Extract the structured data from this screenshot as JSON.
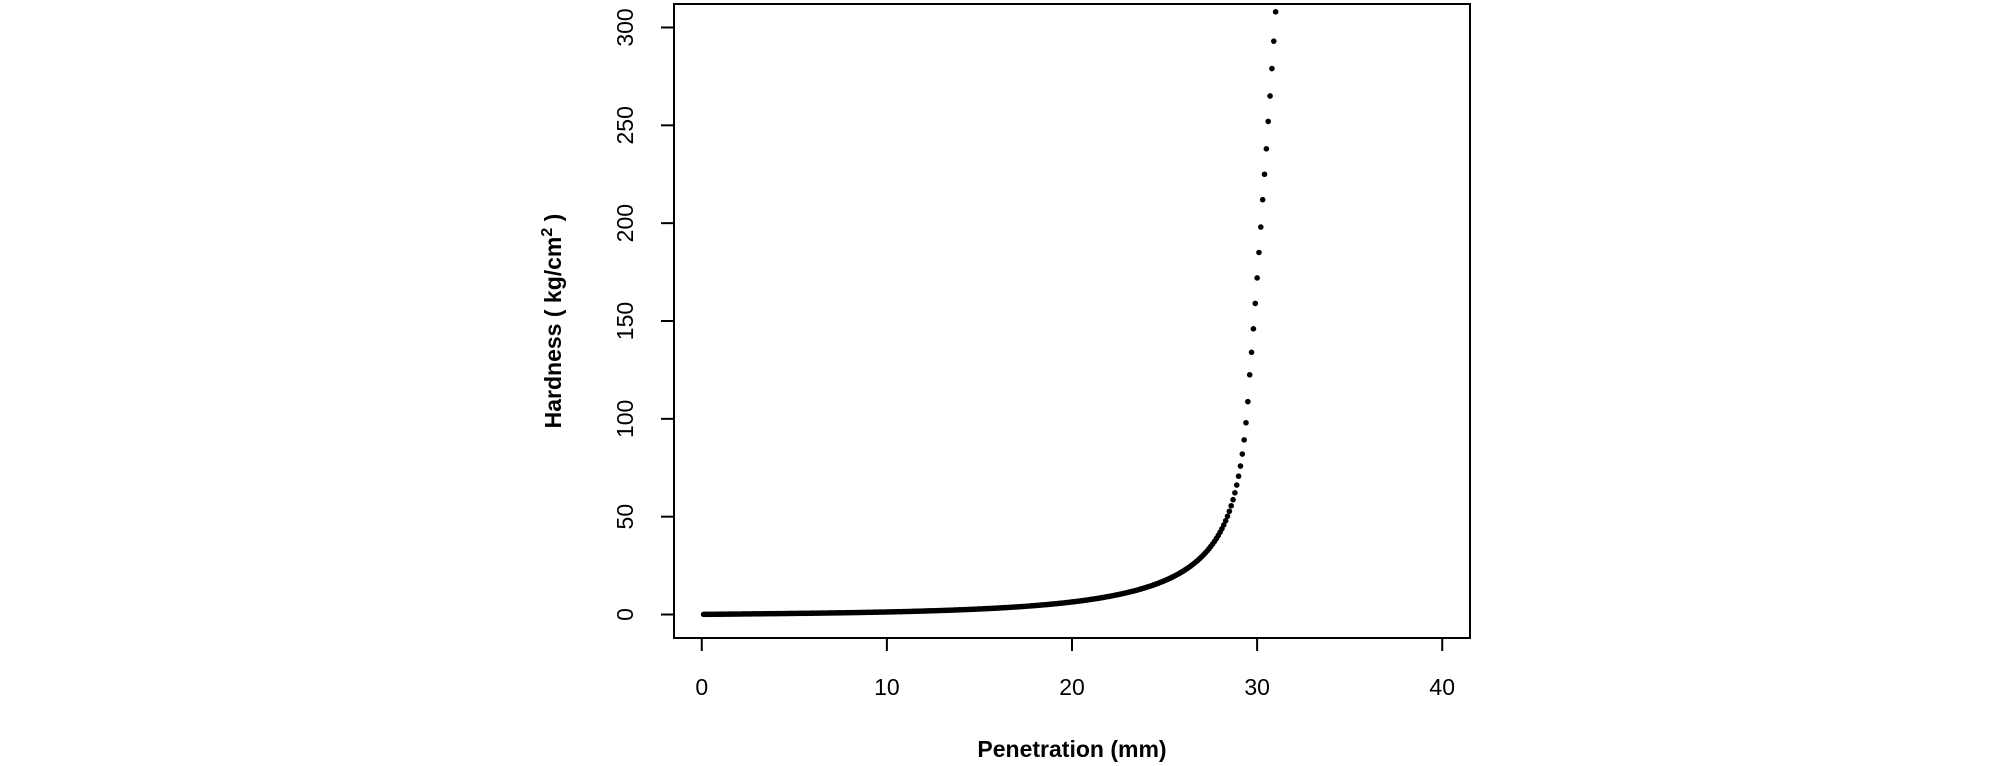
{
  "chart_data": {
    "type": "scatter",
    "title": "",
    "xlabel": "Penetration (mm)",
    "ylabel": {
      "prefix": "Hardness ( kg/cm",
      "superscript": "2",
      "suffix": " )"
    },
    "xlim": [
      -1.5,
      41.5
    ],
    "ylim": [
      -12,
      312
    ],
    "xticks": [
      0,
      10,
      20,
      30,
      40
    ],
    "yticks": [
      0,
      50,
      100,
      150,
      200,
      250,
      300
    ],
    "grid": false,
    "legend": "none",
    "marker_color": "#000000",
    "series": [
      {
        "x_start": 0.1,
        "x_step": 0.1,
        "y": [
          0.07,
          0.08,
          0.09,
          0.1,
          0.11,
          0.12,
          0.13,
          0.14,
          0.15,
          0.16,
          0.17,
          0.18,
          0.19,
          0.2,
          0.21,
          0.22,
          0.23,
          0.24,
          0.25,
          0.26,
          0.27,
          0.28,
          0.29,
          0.3,
          0.31,
          0.32,
          0.33,
          0.34,
          0.35,
          0.36,
          0.37,
          0.38,
          0.39,
          0.4,
          0.41,
          0.42,
          0.43,
          0.44,
          0.45,
          0.46,
          0.47,
          0.48,
          0.49,
          0.5,
          0.51,
          0.52,
          0.53,
          0.54,
          0.55,
          0.56,
          0.57,
          0.58,
          0.59,
          0.6,
          0.62,
          0.63,
          0.64,
          0.65,
          0.66,
          0.67,
          0.69,
          0.7,
          0.71,
          0.72,
          0.74,
          0.75,
          0.76,
          0.78,
          0.79,
          0.8,
          0.82,
          0.83,
          0.85,
          0.86,
          0.87,
          0.89,
          0.9,
          0.92,
          0.93,
          0.95,
          0.97,
          0.98,
          1,
          1.01,
          1.03,
          1.05,
          1.06,
          1.08,
          1.1,
          1.12,
          1.14,
          1.15,
          1.17,
          1.19,
          1.21,
          1.23,
          1.25,
          1.27,
          1.29,
          1.31,
          1.33,
          1.35,
          1.37,
          1.39,
          1.42,
          1.44,
          1.46,
          1.48,
          1.51,
          1.53,
          1.55,
          1.58,
          1.6,
          1.63,
          1.65,
          1.68,
          1.7,
          1.73,
          1.76,
          1.78,
          1.81,
          1.84,
          1.87,
          1.9,
          1.93,
          1.96,
          1.99,
          2.02,
          2.05,
          2.08,
          2.11,
          2.14,
          2.18,
          2.21,
          2.25,
          2.28,
          2.32,
          2.35,
          2.39,
          2.43,
          2.46,
          2.5,
          2.54,
          2.58,
          2.62,
          2.66,
          2.7,
          2.75,
          2.79,
          2.83,
          2.88,
          2.92,
          2.97,
          3.02,
          3.06,
          3.11,
          3.16,
          3.21,
          3.26,
          3.31,
          3.37,
          3.42,
          3.48,
          3.53,
          3.59,
          3.65,
          3.71,
          3.77,
          3.83,
          3.89,
          3.95,
          4.02,
          4.08,
          4.15,
          4.22,
          4.29,
          4.36,
          4.43,
          4.5,
          4.58,
          4.65,
          4.73,
          4.81,
          4.89,
          4.97,
          5.06,
          5.14,
          5.23,
          5.32,
          5.41,
          5.5,
          5.6,
          5.69,
          5.79,
          5.89,
          6,
          6.1,
          6.21,
          6.32,
          6.43,
          6.54,
          6.66,
          6.78,
          6.9,
          7.02,
          7.15,
          7.28,
          7.41,
          7.55,
          7.69,
          7.83,
          7.97,
          8.12,
          8.27,
          8.43,
          8.59,
          8.75,
          8.92,
          9.09,
          9.26,
          9.44,
          9.62,
          9.81,
          10,
          10.2,
          10.4,
          10.61,
          10.82,
          11.04,
          11.26,
          11.49,
          11.72,
          11.96,
          12.21,
          12.46,
          12.72,
          12.99,
          13.27,
          13.55,
          13.84,
          14.14,
          14.45,
          14.77,
          15.1,
          15.44,
          15.79,
          16.15,
          16.52,
          16.9,
          17.3,
          17.71,
          18.14,
          18.58,
          19.03,
          19.51,
          20,
          20.51,
          21.04,
          21.59,
          22.16,
          22.76,
          23.38,
          24.03,
          24.71,
          25.42,
          26.16,
          26.93,
          27.75,
          28.6,
          29.5,
          30.45,
          31.45,
          32.5,
          33.62,
          34.81,
          36.07,
          37.42,
          38.86,
          40.4,
          42.06,
          43.85,
          45.79,
          47.91,
          50.22,
          52.76,
          55.57,
          58.69,
          62.19,
          66.15,
          70.67,
          75.89,
          82,
          89.25,
          98,
          108.8,
          122.5,
          134,
          146,
          159,
          172,
          185,
          198,
          212,
          225,
          238,
          252,
          265,
          279,
          293,
          308
        ]
      }
    ]
  }
}
